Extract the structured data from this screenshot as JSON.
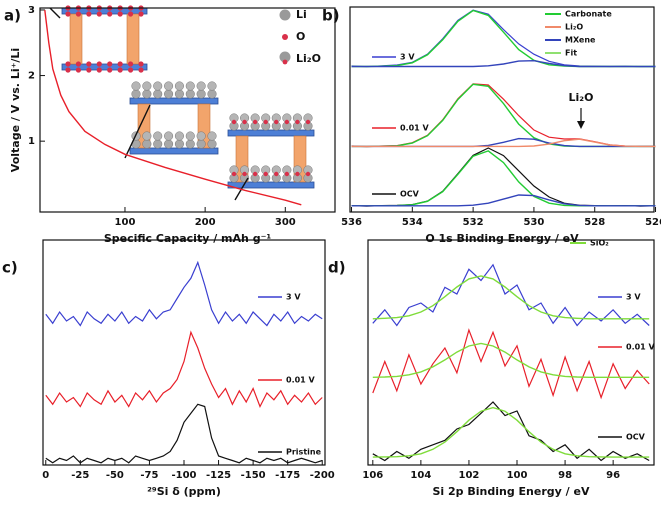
{
  "chart_data": [
    {
      "type": "line",
      "panel": "a)",
      "xlabel": "Specific Capacity / mAh g⁻¹",
      "ylabel": "Voltage / V vs. Li⁺/Li",
      "xlim": [
        -6,
        362
      ],
      "xticks": [
        100,
        200,
        300
      ],
      "ylim": [
        -0.08,
        3.03
      ],
      "yticks": [
        1,
        2,
        3
      ],
      "x": [
        0,
        5,
        10,
        20,
        30,
        50,
        75,
        100,
        150,
        200,
        250,
        300,
        320
      ],
      "series": [
        {
          "color": "#e8202a",
          "values": [
            3.0,
            2.5,
            2.1,
            1.7,
            1.45,
            1.15,
            0.95,
            0.8,
            0.6,
            0.42,
            0.25,
            0.1,
            0.03
          ]
        }
      ],
      "legend": [
        {
          "name": "Li",
          "color": "#9a9a9a"
        },
        {
          "name": "O",
          "color": "#d9304a"
        },
        {
          "name": "Li₂O",
          "color": "#9a9a9a"
        }
      ]
    },
    {
      "type": "line",
      "panel": "b)",
      "xlabel": "O 1s Binding Energy / eV",
      "xlim": [
        536.05,
        526.05
      ],
      "xticks": [
        536,
        534,
        532,
        530,
        528,
        526
      ],
      "ylim": [
        0,
        10
      ],
      "x": [
        536,
        535.5,
        535,
        534.5,
        534,
        533.5,
        533,
        532.5,
        532,
        531.5,
        531,
        530.5,
        530,
        529.5,
        529,
        528.5,
        528,
        527.5,
        527,
        526.5,
        526
      ],
      "legend": [
        {
          "name": "Carbonate",
          "color": "#22cc33"
        },
        {
          "name": "Li₂O",
          "color": "#f08a6a"
        },
        {
          "name": "MXene",
          "color": "#3344bb"
        },
        {
          "name": "Fit",
          "color": "#8fe070"
        }
      ],
      "annotation": "Li₂O",
      "series": [
        {
          "name": "3 V",
          "color": "#3a3fd0",
          "values": [
            7.12,
            7.09,
            7.13,
            7.17,
            7.3,
            7.7,
            8.45,
            9.35,
            9.85,
            9.65,
            8.9,
            8.2,
            7.7,
            7.35,
            7.18,
            7.12,
            7.11,
            7.1,
            7.11,
            7.09,
            7.1
          ]
        },
        {
          "color": "#22cc33",
          "values": [
            7.1,
            7.1,
            7.11,
            7.14,
            7.28,
            7.67,
            8.4,
            9.3,
            9.83,
            9.59,
            8.77,
            7.92,
            7.4,
            7.18,
            7.12,
            7.1,
            7.1,
            7.1,
            7.1,
            7.1,
            7.1
          ]
        },
        {
          "color": "#3344bb",
          "values": [
            7.1,
            7.1,
            7.1,
            7.1,
            7.1,
            7.1,
            7.1,
            7.1,
            7.1,
            7.13,
            7.22,
            7.36,
            7.38,
            7.25,
            7.14,
            7.1,
            7.1,
            7.1,
            7.1,
            7.1,
            7.1
          ]
        },
        {
          "name": "0.01 V",
          "color": "#e8202a",
          "values": [
            3.22,
            3.19,
            3.22,
            3.24,
            3.38,
            3.74,
            4.5,
            5.52,
            6.25,
            6.2,
            5.5,
            4.7,
            4.0,
            3.65,
            3.56,
            3.57,
            3.43,
            3.28,
            3.22,
            3.2,
            3.21
          ]
        },
        {
          "color": "#22cc33",
          "values": [
            3.2,
            3.2,
            3.21,
            3.23,
            3.36,
            3.72,
            4.47,
            5.49,
            6.23,
            6.13,
            5.29,
            4.29,
            3.62,
            3.32,
            3.22,
            3.2,
            3.2,
            3.2,
            3.2,
            3.2,
            3.2
          ]
        },
        {
          "color": "#3344bb",
          "values": [
            3.2,
            3.2,
            3.2,
            3.2,
            3.2,
            3.2,
            3.2,
            3.2,
            3.2,
            3.25,
            3.4,
            3.58,
            3.55,
            3.36,
            3.24,
            3.2,
            3.2,
            3.2,
            3.2,
            3.2,
            3.2
          ]
        },
        {
          "color": "#f08a6a",
          "values": [
            3.2,
            3.2,
            3.2,
            3.2,
            3.2,
            3.2,
            3.2,
            3.2,
            3.2,
            3.2,
            3.2,
            3.2,
            3.22,
            3.31,
            3.48,
            3.55,
            3.41,
            3.27,
            3.21,
            3.2,
            3.2
          ]
        },
        {
          "name": "OCV",
          "color": "#111111",
          "values": [
            0.31,
            0.29,
            0.31,
            0.32,
            0.36,
            0.53,
            1.01,
            1.87,
            2.76,
            3.12,
            2.75,
            2.01,
            1.27,
            0.73,
            0.43,
            0.33,
            0.31,
            0.3,
            0.31,
            0.29,
            0.3
          ]
        },
        {
          "color": "#22cc33",
          "values": [
            0.3,
            0.3,
            0.3,
            0.31,
            0.35,
            0.52,
            0.99,
            1.84,
            2.72,
            2.98,
            2.41,
            1.47,
            0.76,
            0.43,
            0.32,
            0.3,
            0.3,
            0.3,
            0.3,
            0.3,
            0.3
          ]
        },
        {
          "color": "#3344bb",
          "values": [
            0.3,
            0.3,
            0.3,
            0.3,
            0.3,
            0.3,
            0.3,
            0.3,
            0.33,
            0.43,
            0.63,
            0.83,
            0.8,
            0.59,
            0.4,
            0.32,
            0.3,
            0.3,
            0.3,
            0.3,
            0.3
          ]
        }
      ]
    },
    {
      "type": "line",
      "panel": "c)",
      "xlabel": "²⁹Si δ (ppm)",
      "xlim": [
        2,
        -202
      ],
      "xticks": [
        0,
        -25,
        -50,
        -75,
        -100,
        -125,
        -150,
        -175,
        -200
      ],
      "ylim": [
        0,
        10
      ],
      "x": [
        0,
        -5,
        -10,
        -15,
        -20,
        -25,
        -30,
        -35,
        -40,
        -45,
        -50,
        -55,
        -60,
        -65,
        -70,
        -75,
        -80,
        -85,
        -90,
        -95,
        -100,
        -105,
        -110,
        -115,
        -120,
        -125,
        -130,
        -135,
        -140,
        -145,
        -150,
        -155,
        -160,
        -165,
        -170,
        -175,
        -180,
        -185,
        -190,
        -195,
        -200
      ],
      "series": [
        {
          "name": "3 V",
          "color": "#3a3fd0",
          "values": [
            6.7,
            6.3,
            6.8,
            6.4,
            6.6,
            6.2,
            6.8,
            6.5,
            6.3,
            6.7,
            6.4,
            6.8,
            6.3,
            6.6,
            6.4,
            6.9,
            6.5,
            6.8,
            6.9,
            7.4,
            7.9,
            8.3,
            9.0,
            8.0,
            6.9,
            6.3,
            6.8,
            6.4,
            6.7,
            6.3,
            6.8,
            6.5,
            6.2,
            6.7,
            6.4,
            6.8,
            6.3,
            6.6,
            6.4,
            6.7,
            6.5
          ]
        },
        {
          "name": "0.01 V",
          "color": "#e8202a",
          "values": [
            3.1,
            2.7,
            3.2,
            2.8,
            3.0,
            2.6,
            3.2,
            2.9,
            2.7,
            3.3,
            2.8,
            3.1,
            2.6,
            3.2,
            2.9,
            3.3,
            2.8,
            3.2,
            3.4,
            3.8,
            4.6,
            5.9,
            5.2,
            4.3,
            3.6,
            3.0,
            3.4,
            2.7,
            3.3,
            2.8,
            3.4,
            2.6,
            3.2,
            2.9,
            3.3,
            2.7,
            3.1,
            2.8,
            3.2,
            2.7,
            3.0
          ]
        },
        {
          "name": "Pristine",
          "color": "#111111",
          "values": [
            0.3,
            0.1,
            0.3,
            0.2,
            0.4,
            0.1,
            0.3,
            0.2,
            0.1,
            0.3,
            0.2,
            0.3,
            0.1,
            0.4,
            0.3,
            0.2,
            0.3,
            0.4,
            0.6,
            1.1,
            1.9,
            2.3,
            2.7,
            2.6,
            1.2,
            0.4,
            0.3,
            0.2,
            0.1,
            0.3,
            0.2,
            0.1,
            0.3,
            0.2,
            0.3,
            0.1,
            0.2,
            0.3,
            0.2,
            0.1,
            0.2
          ]
        }
      ]
    },
    {
      "type": "line",
      "panel": "d)",
      "xlabel": "Si 2p Binding Energy / eV",
      "xlim": [
        106.2,
        94.3
      ],
      "xticks": [
        106,
        104,
        102,
        100,
        98,
        96
      ],
      "ylim": [
        0,
        10
      ],
      "x": [
        106,
        105.5,
        105,
        104.5,
        104,
        103.5,
        103,
        102.5,
        102,
        101.5,
        101,
        100.5,
        100,
        99.5,
        99,
        98.5,
        98,
        97.5,
        97,
        96.5,
        96,
        95.5,
        95,
        94.5
      ],
      "legend": [
        {
          "name": "SiO₂",
          "color": "#7fdc3a"
        }
      ],
      "series": [
        {
          "name": "3 V",
          "color": "#3a3fd0",
          "values": [
            6.3,
            6.9,
            6.2,
            7.0,
            7.2,
            6.8,
            7.9,
            7.6,
            8.7,
            8.2,
            8.9,
            7.6,
            8.0,
            6.9,
            7.2,
            6.3,
            7.0,
            6.2,
            6.8,
            6.4,
            6.9,
            6.3,
            6.7,
            6.2
          ]
        },
        {
          "color": "#7fdc3a",
          "values": [
            6.5,
            6.52,
            6.55,
            6.63,
            6.8,
            7.08,
            7.48,
            7.91,
            8.27,
            8.4,
            8.27,
            7.91,
            7.48,
            7.08,
            6.8,
            6.63,
            6.55,
            6.52,
            6.5,
            6.5,
            6.5,
            6.5,
            6.5,
            6.5
          ]
        },
        {
          "name": "0.01 V",
          "color": "#e8202a",
          "values": [
            3.2,
            4.6,
            3.3,
            4.9,
            3.6,
            4.5,
            5.2,
            4.1,
            6.0,
            4.6,
            5.9,
            4.4,
            5.3,
            3.5,
            4.7,
            3.1,
            4.8,
            3.3,
            4.6,
            3.0,
            4.5,
            3.4,
            4.2,
            3.6
          ]
        },
        {
          "color": "#7fdc3a",
          "values": [
            3.9,
            3.91,
            3.94,
            4.01,
            4.14,
            4.36,
            4.67,
            5.02,
            5.29,
            5.4,
            5.29,
            5.02,
            4.67,
            4.36,
            4.14,
            4.01,
            3.94,
            3.91,
            3.9,
            3.9,
            3.9,
            3.9,
            3.9,
            3.9
          ]
        },
        {
          "name": "OCV",
          "color": "#111111",
          "values": [
            0.5,
            0.2,
            0.6,
            0.3,
            0.7,
            0.9,
            1.1,
            1.6,
            1.8,
            2.3,
            2.8,
            2.2,
            2.4,
            1.3,
            1.1,
            0.6,
            0.9,
            0.3,
            0.7,
            0.2,
            0.6,
            0.3,
            0.5,
            0.2
          ]
        },
        {
          "color": "#7fdc3a",
          "values": [
            0.35,
            0.36,
            0.37,
            0.41,
            0.5,
            0.7,
            1.02,
            1.48,
            1.99,
            2.39,
            2.55,
            2.39,
            1.99,
            1.48,
            1.02,
            0.7,
            0.5,
            0.41,
            0.37,
            0.36,
            0.35,
            0.35,
            0.35,
            0.35
          ]
        }
      ]
    }
  ]
}
